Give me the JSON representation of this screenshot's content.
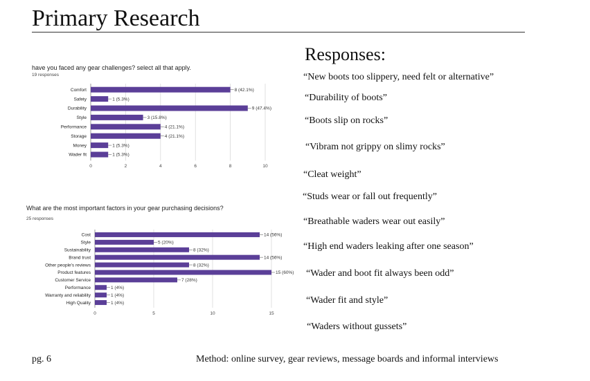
{
  "page": {
    "title": "Primary Research",
    "page_number": "pg. 6",
    "method": "Method: online survey, gear reviews, message boards and informal interviews"
  },
  "responses": {
    "heading": "Responses:",
    "items": [
      "“New boots too slippery, need felt or alternative”",
      "“Durability of boots”",
      "“Boots slip on rocks”",
      "“Vibram not grippy on slimy rocks”",
      "“Cleat weight”",
      "“Studs wear or fall out frequently”",
      "“Breathable waders wear out easily”",
      "“High end waders leaking after one season”",
      "“Wader and boot fit always been odd”",
      "“Wader fit and style”",
      "“Waders without gussets”"
    ]
  },
  "chart_data": [
    {
      "type": "bar",
      "orientation": "horizontal",
      "title": "have you faced any gear challenges? select all that apply.",
      "subtitle": "19 responses",
      "categories": [
        "Comfort",
        "Safety",
        "Durability",
        "Style",
        "Performance",
        "Storage",
        "Money",
        "Wader fit"
      ],
      "values": [
        8,
        1,
        9,
        3,
        4,
        4,
        1,
        1
      ],
      "data_labels": [
        "8 (42.1%)",
        "1 (5.3%)",
        "9 (47.4%)",
        "3 (15.8%)",
        "4 (21.1%)",
        "4 (21.1%)",
        "1 (5.3%)",
        "1 (5.3%)"
      ],
      "xticks": [
        0,
        2,
        4,
        6,
        8,
        10
      ],
      "xlim": [
        0,
        10
      ],
      "bar_color": "#5b3f98",
      "grid": true
    },
    {
      "type": "bar",
      "orientation": "horizontal",
      "title": "What are the most important factors in your gear purchasing decisions?",
      "subtitle": "25 responses",
      "categories": [
        "Cost",
        "Style",
        "Sustainability",
        "Brand trust",
        "Other people's reviews",
        "Product features",
        "Customer Service",
        "Performance",
        "Warranty and reliability",
        "High Quality"
      ],
      "values": [
        14,
        5,
        8,
        14,
        8,
        15,
        7,
        1,
        1,
        1
      ],
      "data_labels": [
        "14 (56%)",
        "5 (20%)",
        "8 (32%)",
        "14 (56%)",
        "8 (32%)",
        "15 (60%)",
        "7 (28%)",
        "1 (4%)",
        "1 (4%)",
        "1 (4%)"
      ],
      "xticks": [
        0,
        5,
        10,
        15
      ],
      "xlim": [
        0,
        15
      ],
      "bar_color": "#5b3f98",
      "grid": true
    }
  ]
}
